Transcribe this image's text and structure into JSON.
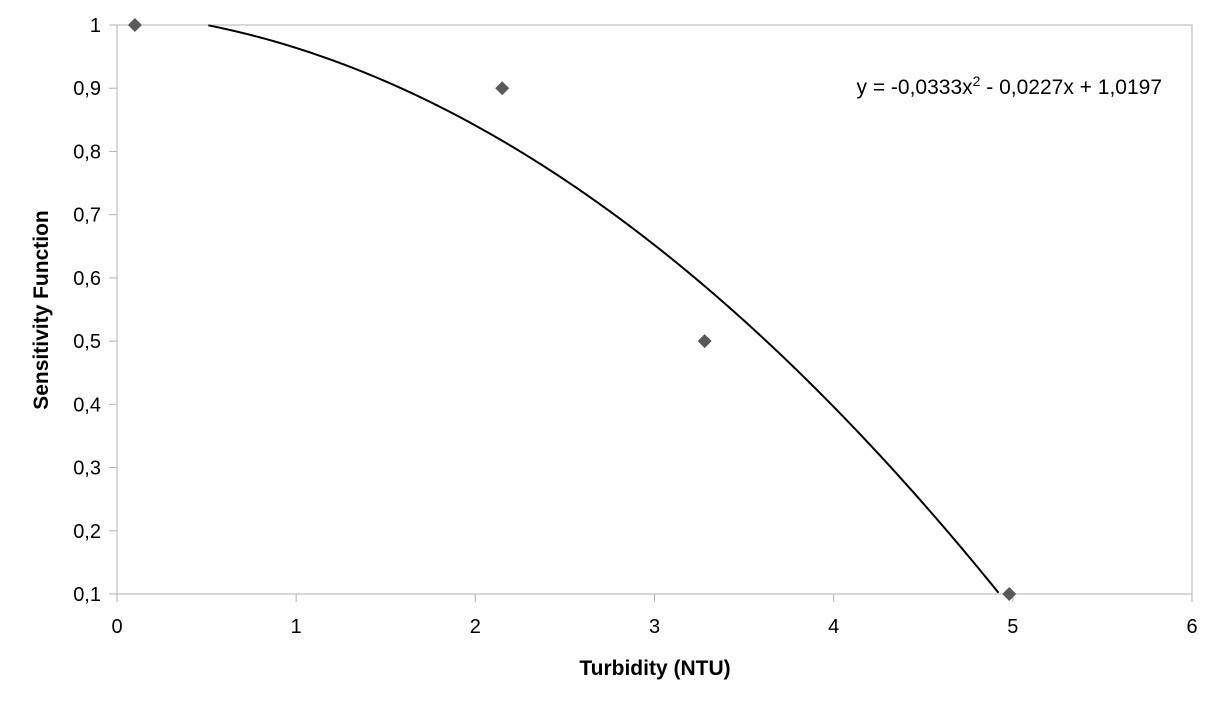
{
  "chart_data": {
    "type": "scatter",
    "title": "",
    "xlabel": "Turbidity (NTU)",
    "ylabel": "Sensitivity Function",
    "xlim": [
      0,
      6
    ],
    "ylim": [
      0.1,
      1
    ],
    "grid": false,
    "x_ticks": [
      0,
      1,
      2,
      3,
      4,
      5,
      6
    ],
    "x_tick_labels": [
      "0",
      "1",
      "2",
      "3",
      "4",
      "5",
      "6"
    ],
    "y_ticks": [
      0.1,
      0.2,
      0.3,
      0.4,
      0.5,
      0.6,
      0.7,
      0.8,
      0.9,
      1
    ],
    "y_tick_labels": [
      "0,1",
      "0,2",
      "0,3",
      "0,4",
      "0,5",
      "0,6",
      "0,7",
      "0,8",
      "0,9",
      "1"
    ],
    "series": [
      {
        "marker": "diamond",
        "color": "#595959",
        "points": [
          {
            "x": 0.1,
            "y": 1.0
          },
          {
            "x": 2.15,
            "y": 0.9
          },
          {
            "x": 3.28,
            "y": 0.5
          },
          {
            "x": 4.98,
            "y": 0.1
          }
        ]
      }
    ],
    "trendline": {
      "kind": "polynomial-2",
      "coefficients": {
        "a": -0.0333,
        "b": -0.0227,
        "c": 1.0197
      },
      "color": "#000000",
      "equation_text": {
        "prefix": "y = -0,0333x",
        "superscript": "2",
        "suffix": " - 0,0227x + 1,0197"
      }
    }
  }
}
